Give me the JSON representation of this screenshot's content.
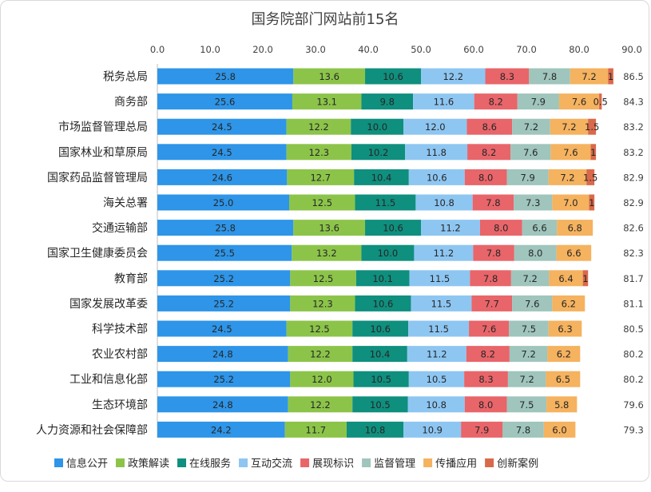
{
  "chart_data": {
    "type": "bar",
    "orientation": "horizontal",
    "stacked": true,
    "title": "国务院部门网站前15名",
    "xlim": [
      0,
      90
    ],
    "x_ticks": [
      "0.0",
      "10.0",
      "20.0",
      "30.0",
      "40.0",
      "50.0",
      "60.0",
      "70.0",
      "80.0",
      "90.0"
    ],
    "x_axis_position": "top",
    "legend_position": "bottom",
    "grid": false,
    "categories": [
      "税务总局",
      "商务部",
      "市场监督管理总局",
      "国家林业和草原局",
      "国家药品监督管理局",
      "海关总署",
      "交通运输部",
      "国家卫生健康委员会",
      "教育部",
      "国家发展改革委",
      "科学技术部",
      "农业农村部",
      "工业和信息化部",
      "生态环境部",
      "人力资源和社会保障部"
    ],
    "totals": [
      "86.5",
      "84.3",
      "83.2",
      "83.2",
      "82.9",
      "82.9",
      "82.6",
      "82.3",
      "81.7",
      "81.1",
      "80.5",
      "80.2",
      "80.2",
      "79.6",
      "79.3"
    ],
    "series": [
      {
        "name": "信息公开",
        "color": "#2e95e8",
        "values": [
          25.8,
          25.6,
          24.5,
          24.5,
          24.6,
          25.0,
          25.8,
          25.5,
          25.2,
          25.2,
          24.5,
          24.8,
          25.2,
          24.8,
          24.2
        ],
        "labels": [
          "25.8",
          "25.6",
          "24.5",
          "24.5",
          "24.6",
          "25.0",
          "25.8",
          "25.5",
          "25.2",
          "25.2",
          "24.5",
          "24.8",
          "25.2",
          "24.8",
          "24.2"
        ]
      },
      {
        "name": "政策解读",
        "color": "#8cc44a",
        "values": [
          13.6,
          13.1,
          12.2,
          12.3,
          12.7,
          12.5,
          13.6,
          13.2,
          12.5,
          12.3,
          12.5,
          12.2,
          12.0,
          12.2,
          11.7
        ],
        "labels": [
          "13.6",
          "13.1",
          "12.2",
          "12.3",
          "12.7",
          "12.5",
          "13.6",
          "13.2",
          "12.5",
          "12.3",
          "12.5",
          "12.2",
          "12.0",
          "12.2",
          "11.7"
        ]
      },
      {
        "name": "在线服务",
        "color": "#0f8f7e",
        "values": [
          10.6,
          9.8,
          10.0,
          10.2,
          10.4,
          11.5,
          10.6,
          10.0,
          10.1,
          10.6,
          10.6,
          10.4,
          10.5,
          10.5,
          10.8
        ],
        "labels": [
          "10.6",
          "9.8",
          "10.0",
          "10.2",
          "10.4",
          "11.5",
          "10.6",
          "10.0",
          "10.1",
          "10.6",
          "10.6",
          "10.4",
          "10.5",
          "10.5",
          "10.8"
        ]
      },
      {
        "name": "互动交流",
        "color": "#8ec6f2",
        "values": [
          12.2,
          11.6,
          12.0,
          11.8,
          10.6,
          10.8,
          11.2,
          11.2,
          11.5,
          11.5,
          11.5,
          11.2,
          10.5,
          10.8,
          10.9
        ],
        "labels": [
          "12.2",
          "11.6",
          "12.0",
          "11.8",
          "10.6",
          "10.8",
          "11.2",
          "11.2",
          "11.5",
          "11.5",
          "11.5",
          "11.2",
          "10.5",
          "10.8",
          "10.9"
        ]
      },
      {
        "name": "展现标识",
        "color": "#e8656a",
        "values": [
          8.3,
          8.2,
          8.6,
          8.2,
          8.0,
          7.8,
          8.0,
          7.8,
          7.8,
          7.7,
          7.6,
          8.2,
          8.3,
          8.0,
          7.9
        ],
        "labels": [
          "8.3",
          "8.2",
          "8.6",
          "8.2",
          "8.0",
          "7.8",
          "8.0",
          "7.8",
          "7.8",
          "7.7",
          "7.6",
          "8.2",
          "8.3",
          "8.0",
          "7.9"
        ]
      },
      {
        "name": "监督管理",
        "color": "#9fc5bc",
        "values": [
          7.8,
          7.9,
          7.2,
          7.6,
          7.9,
          7.3,
          6.6,
          8.0,
          7.2,
          7.6,
          7.5,
          7.2,
          7.2,
          7.5,
          7.8
        ],
        "labels": [
          "7.8",
          "7.9",
          "7.2",
          "7.6",
          "7.9",
          "7.3",
          "6.6",
          "8.0",
          "7.2",
          "7.6",
          "7.5",
          "7.2",
          "7.2",
          "7.5",
          "7.8"
        ]
      },
      {
        "name": "传播应用",
        "color": "#f5b25f",
        "values": [
          7.2,
          7.6,
          7.2,
          7.6,
          7.2,
          7.0,
          6.8,
          6.6,
          6.4,
          6.2,
          6.3,
          6.2,
          6.5,
          5.8,
          6.0
        ],
        "labels": [
          "7.2",
          "7.6",
          "7.2",
          "7.6",
          "7.2",
          "7.0",
          "6.8",
          "6.6",
          "6.4",
          "6.2",
          "6.3",
          "6.2",
          "6.5",
          "5.8",
          "6.0"
        ]
      },
      {
        "name": "创新案例",
        "color": "#d9694a",
        "values": [
          1,
          0.5,
          1.5,
          1,
          1.5,
          1,
          0,
          0,
          1,
          0,
          0,
          0,
          0,
          0,
          0
        ],
        "labels": [
          "1",
          "0.5",
          "1.5",
          "1",
          "1.5",
          "1",
          "",
          "",
          "1",
          "",
          "",
          "",
          "",
          "",
          ""
        ]
      }
    ]
  }
}
